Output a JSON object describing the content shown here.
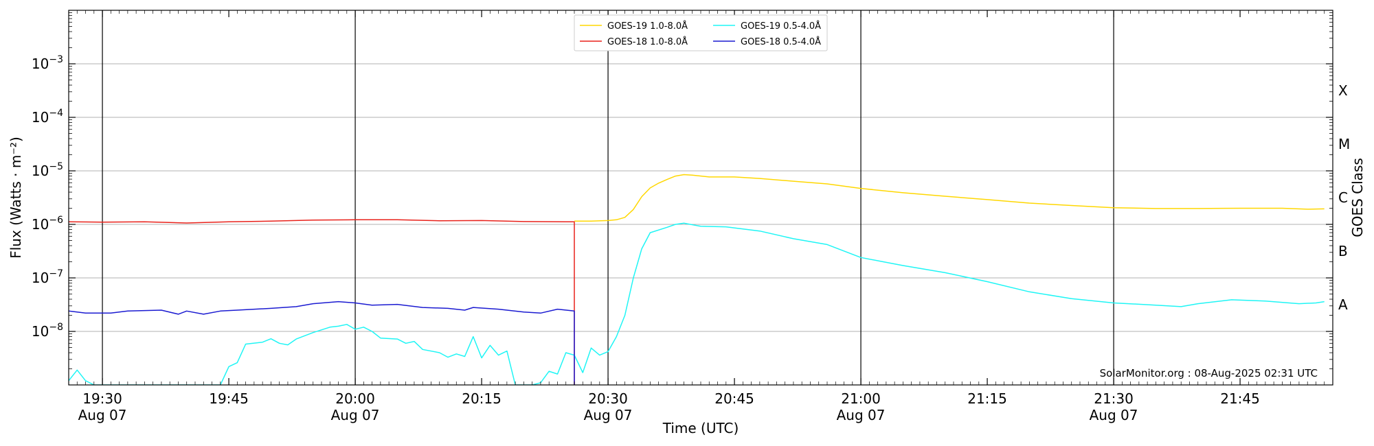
{
  "chart_data": {
    "type": "line",
    "xlabel": "Time (UTC)",
    "ylabel": "Flux (Watts · m⁻²)",
    "y2label": "GOES Class",
    "yscale": "log",
    "xlim": [
      "2025-08-07 19:26",
      "2025-08-07 21:56"
    ],
    "ylim": [
      1e-09,
      0.01
    ],
    "grid": "horizontal",
    "legend_placement": "top-center",
    "credit": "SolarMonitor.org : 08-Aug-2025 02:31 UTC",
    "x_ticks": [
      {
        "t": "2025-08-07 19:30",
        "time": "19:30",
        "date": "Aug 07"
      },
      {
        "t": "2025-08-07 19:45",
        "time": "19:45",
        "date": ""
      },
      {
        "t": "2025-08-07 20:00",
        "time": "20:00",
        "date": "Aug 07"
      },
      {
        "t": "2025-08-07 20:15",
        "time": "20:15",
        "date": ""
      },
      {
        "t": "2025-08-07 20:30",
        "time": "20:30",
        "date": "Aug 07"
      },
      {
        "t": "2025-08-07 20:45",
        "time": "20:45",
        "date": ""
      },
      {
        "t": "2025-08-07 21:00",
        "time": "21:00",
        "date": "Aug 07"
      },
      {
        "t": "2025-08-07 21:15",
        "time": "21:15",
        "date": ""
      },
      {
        "t": "2025-08-07 21:30",
        "time": "21:30",
        "date": "Aug 07"
      },
      {
        "t": "2025-08-07 21:45",
        "time": "21:45",
        "date": ""
      }
    ],
    "y_ticks": [
      {
        "value": 1e-08,
        "mantissa": "10",
        "exp": "−8"
      },
      {
        "value": 1e-07,
        "mantissa": "10",
        "exp": "−7"
      },
      {
        "value": 1e-06,
        "mantissa": "10",
        "exp": "−6"
      },
      {
        "value": 1e-05,
        "mantissa": "10",
        "exp": "−5"
      },
      {
        "value": 0.0001,
        "mantissa": "10",
        "exp": "−4"
      },
      {
        "value": 0.001,
        "mantissa": "10",
        "exp": "−3"
      }
    ],
    "goes_classes": [
      {
        "label": "A",
        "value": 3.16e-08
      },
      {
        "label": "B",
        "value": 3.16e-07
      },
      {
        "label": "C",
        "value": 3.16e-06
      },
      {
        "label": "M",
        "value": 3.16e-05
      },
      {
        "label": "X",
        "value": 0.000316
      }
    ],
    "day_lines": [
      "2025-08-07 19:30",
      "2025-08-07 20:00",
      "2025-08-07 20:30",
      "2025-08-07 21:00",
      "2025-08-07 21:30"
    ],
    "series": [
      {
        "name": "GOES-19 1.0-8.0Å",
        "color": "#ffd700",
        "points": [
          [
            "2025-08-07 20:26",
            1.15e-06
          ],
          [
            "2025-08-07 20:28",
            1.15e-06
          ],
          [
            "2025-08-07 20:30",
            1.18e-06
          ],
          [
            "2025-08-07 20:31",
            1.22e-06
          ],
          [
            "2025-08-07 20:32",
            1.35e-06
          ],
          [
            "2025-08-07 20:33",
            1.9e-06
          ],
          [
            "2025-08-07 20:34",
            3.3e-06
          ],
          [
            "2025-08-07 20:35",
            4.8e-06
          ],
          [
            "2025-08-07 20:36",
            5.9e-06
          ],
          [
            "2025-08-07 20:37",
            6.9e-06
          ],
          [
            "2025-08-07 20:38",
            8e-06
          ],
          [
            "2025-08-07 20:39",
            8.5e-06
          ],
          [
            "2025-08-07 20:40",
            8.3e-06
          ],
          [
            "2025-08-07 20:42",
            7.7e-06
          ],
          [
            "2025-08-07 20:45",
            7.7e-06
          ],
          [
            "2025-08-07 20:48",
            7.2e-06
          ],
          [
            "2025-08-07 20:52",
            6.4e-06
          ],
          [
            "2025-08-07 20:56",
            5.7e-06
          ],
          [
            "2025-08-07 21:00",
            4.7e-06
          ],
          [
            "2025-08-07 21:05",
            3.9e-06
          ],
          [
            "2025-08-07 21:10",
            3.35e-06
          ],
          [
            "2025-08-07 21:15",
            2.9e-06
          ],
          [
            "2025-08-07 21:20",
            2.5e-06
          ],
          [
            "2025-08-07 21:25",
            2.25e-06
          ],
          [
            "2025-08-07 21:30",
            2.05e-06
          ],
          [
            "2025-08-07 21:35",
            1.98e-06
          ],
          [
            "2025-08-07 21:40",
            1.98e-06
          ],
          [
            "2025-08-07 21:45",
            2e-06
          ],
          [
            "2025-08-07 21:50",
            2e-06
          ],
          [
            "2025-08-07 21:53",
            1.92e-06
          ],
          [
            "2025-08-07 21:55",
            1.95e-06
          ]
        ]
      },
      {
        "name": "GOES-18 1.0-8.0Å",
        "color": "#e8211a",
        "points": [
          [
            "2025-08-07 19:26",
            1.12e-06
          ],
          [
            "2025-08-07 19:30",
            1.1e-06
          ],
          [
            "2025-08-07 19:35",
            1.12e-06
          ],
          [
            "2025-08-07 19:40",
            1.06e-06
          ],
          [
            "2025-08-07 19:45",
            1.12e-06
          ],
          [
            "2025-08-07 19:50",
            1.15e-06
          ],
          [
            "2025-08-07 19:55",
            1.2e-06
          ],
          [
            "2025-08-07 20:00",
            1.22e-06
          ],
          [
            "2025-08-07 20:05",
            1.22e-06
          ],
          [
            "2025-08-07 20:10",
            1.17e-06
          ],
          [
            "2025-08-07 20:15",
            1.18e-06
          ],
          [
            "2025-08-07 20:20",
            1.13e-06
          ],
          [
            "2025-08-07 20:25",
            1.12e-06
          ],
          [
            "2025-08-07 20:26",
            1.12e-06
          ],
          [
            "2025-08-07 20:26",
            1e-09
          ]
        ]
      },
      {
        "name": "GOES-19 0.5-4.0Å",
        "color": "#1ef5f5",
        "points": [
          [
            "2025-08-07 19:26",
            1.2e-09
          ],
          [
            "2025-08-07 19:27",
            1.9e-09
          ],
          [
            "2025-08-07 19:28",
            1.2e-09
          ],
          [
            "2025-08-07 19:29",
            1e-09
          ],
          [
            "2025-08-07 19:44",
            1e-09
          ],
          [
            "2025-08-07 19:45",
            2.2e-09
          ],
          [
            "2025-08-07 19:46",
            2.6e-09
          ],
          [
            "2025-08-07 19:47",
            5.8e-09
          ],
          [
            "2025-08-07 19:49",
            6.3e-09
          ],
          [
            "2025-08-07 19:50",
            7.3e-09
          ],
          [
            "2025-08-07 19:51",
            6e-09
          ],
          [
            "2025-08-07 19:52",
            5.6e-09
          ],
          [
            "2025-08-07 19:53",
            7.2e-09
          ],
          [
            "2025-08-07 19:55",
            9.5e-09
          ],
          [
            "2025-08-07 19:57",
            1.2e-08
          ],
          [
            "2025-08-07 19:58",
            1.25e-08
          ],
          [
            "2025-08-07 19:59",
            1.35e-08
          ],
          [
            "2025-08-07 20:00",
            1.1e-08
          ],
          [
            "2025-08-07 20:01",
            1.2e-08
          ],
          [
            "2025-08-07 20:02",
            1e-08
          ],
          [
            "2025-08-07 20:03",
            7.5e-09
          ],
          [
            "2025-08-07 20:05",
            7.2e-09
          ],
          [
            "2025-08-07 20:06",
            6e-09
          ],
          [
            "2025-08-07 20:07",
            6.5e-09
          ],
          [
            "2025-08-07 20:08",
            4.6e-09
          ],
          [
            "2025-08-07 20:10",
            4e-09
          ],
          [
            "2025-08-07 20:11",
            3.3e-09
          ],
          [
            "2025-08-07 20:12",
            3.8e-09
          ],
          [
            "2025-08-07 20:13",
            3.4e-09
          ],
          [
            "2025-08-07 20:14",
            8e-09
          ],
          [
            "2025-08-07 20:15",
            3.2e-09
          ],
          [
            "2025-08-07 20:16",
            5.5e-09
          ],
          [
            "2025-08-07 20:17",
            3.6e-09
          ],
          [
            "2025-08-07 20:18",
            4.3e-09
          ],
          [
            "2025-08-07 20:19",
            1e-09
          ],
          [
            "2025-08-07 20:21",
            1e-09
          ],
          [
            "2025-08-07 20:22",
            1.1e-09
          ],
          [
            "2025-08-07 20:23",
            1.8e-09
          ],
          [
            "2025-08-07 20:24",
            1.6e-09
          ],
          [
            "2025-08-07 20:25",
            4e-09
          ],
          [
            "2025-08-07 20:26",
            3.6e-09
          ],
          [
            "2025-08-07 20:27",
            1.7e-09
          ],
          [
            "2025-08-07 20:28",
            4.9e-09
          ],
          [
            "2025-08-07 20:29",
            3.6e-09
          ],
          [
            "2025-08-07 20:30",
            4.2e-09
          ],
          [
            "2025-08-07 20:31",
            8e-09
          ],
          [
            "2025-08-07 20:32",
            2e-08
          ],
          [
            "2025-08-07 20:33",
            1e-07
          ],
          [
            "2025-08-07 20:34",
            3.5e-07
          ],
          [
            "2025-08-07 20:35",
            7e-07
          ],
          [
            "2025-08-07 20:37",
            8.8e-07
          ],
          [
            "2025-08-07 20:38",
            1e-06
          ],
          [
            "2025-08-07 20:39",
            1.05e-06
          ],
          [
            "2025-08-07 20:41",
            9.2e-07
          ],
          [
            "2025-08-07 20:44",
            9e-07
          ],
          [
            "2025-08-07 20:48",
            7.5e-07
          ],
          [
            "2025-08-07 20:52",
            5.4e-07
          ],
          [
            "2025-08-07 20:56",
            4.2e-07
          ],
          [
            "2025-08-07 21:00",
            2.4e-07
          ],
          [
            "2025-08-07 21:05",
            1.7e-07
          ],
          [
            "2025-08-07 21:10",
            1.25e-07
          ],
          [
            "2025-08-07 21:15",
            8.5e-08
          ],
          [
            "2025-08-07 21:20",
            5.5e-08
          ],
          [
            "2025-08-07 21:25",
            4.1e-08
          ],
          [
            "2025-08-07 21:30",
            3.4e-08
          ],
          [
            "2025-08-07 21:35",
            3.1e-08
          ],
          [
            "2025-08-07 21:38",
            2.9e-08
          ],
          [
            "2025-08-07 21:40",
            3.3e-08
          ],
          [
            "2025-08-07 21:44",
            3.9e-08
          ],
          [
            "2025-08-07 21:48",
            3.7e-08
          ],
          [
            "2025-08-07 21:52",
            3.3e-08
          ],
          [
            "2025-08-07 21:54",
            3.4e-08
          ],
          [
            "2025-08-07 21:55",
            3.6e-08
          ]
        ]
      },
      {
        "name": "GOES-18 0.5-4.0Å",
        "color": "#1a1ad1",
        "points": [
          [
            "2025-08-07 19:26",
            2.4e-08
          ],
          [
            "2025-08-07 19:28",
            2.2e-08
          ],
          [
            "2025-08-07 19:31",
            2.2e-08
          ],
          [
            "2025-08-07 19:33",
            2.4e-08
          ],
          [
            "2025-08-07 19:37",
            2.5e-08
          ],
          [
            "2025-08-07 19:39",
            2.1e-08
          ],
          [
            "2025-08-07 19:40",
            2.4e-08
          ],
          [
            "2025-08-07 19:42",
            2.1e-08
          ],
          [
            "2025-08-07 19:44",
            2.4e-08
          ],
          [
            "2025-08-07 19:46",
            2.5e-08
          ],
          [
            "2025-08-07 19:50",
            2.7e-08
          ],
          [
            "2025-08-07 19:53",
            2.9e-08
          ],
          [
            "2025-08-07 19:55",
            3.3e-08
          ],
          [
            "2025-08-07 19:58",
            3.6e-08
          ],
          [
            "2025-08-07 20:00",
            3.4e-08
          ],
          [
            "2025-08-07 20:02",
            3.1e-08
          ],
          [
            "2025-08-07 20:05",
            3.2e-08
          ],
          [
            "2025-08-07 20:08",
            2.8e-08
          ],
          [
            "2025-08-07 20:11",
            2.7e-08
          ],
          [
            "2025-08-07 20:13",
            2.5e-08
          ],
          [
            "2025-08-07 20:14",
            2.8e-08
          ],
          [
            "2025-08-07 20:17",
            2.6e-08
          ],
          [
            "2025-08-07 20:20",
            2.3e-08
          ],
          [
            "2025-08-07 20:22",
            2.2e-08
          ],
          [
            "2025-08-07 20:24",
            2.6e-08
          ],
          [
            "2025-08-07 20:26",
            2.4e-08
          ],
          [
            "2025-08-07 20:26",
            1e-09
          ]
        ]
      }
    ]
  }
}
